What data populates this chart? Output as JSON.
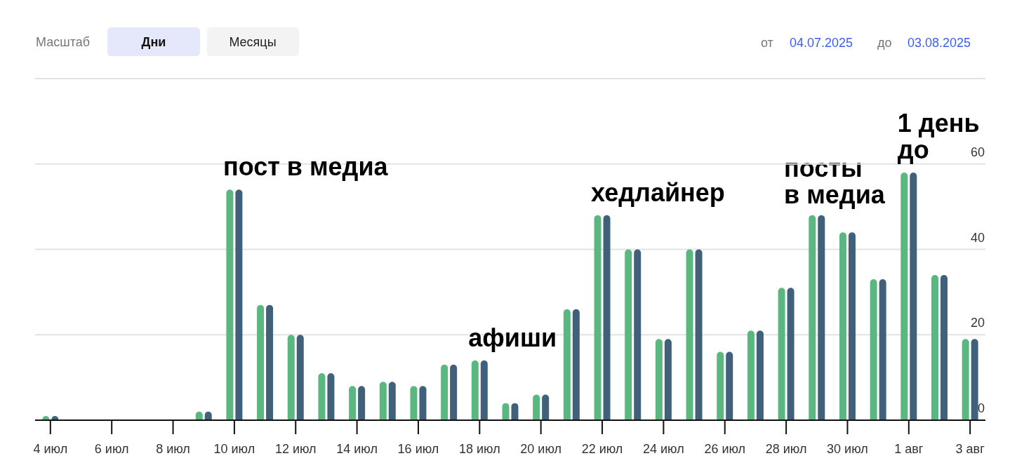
{
  "chart_data": {
    "type": "bar",
    "categories": [
      "4 июл",
      null,
      "6 июл",
      null,
      "8 июл",
      null,
      "10 июл",
      null,
      "12 июл",
      null,
      "14 июл",
      null,
      "16 июл",
      null,
      "18 июл",
      null,
      "20 июл",
      null,
      "22 июл",
      null,
      "24 июл",
      null,
      "26 июл",
      null,
      "28 июл",
      null,
      "30 июл",
      null,
      "1 авг",
      null,
      "3 авг"
    ],
    "series": [
      {
        "color": "#59b77f",
        "values": [
          1,
          0,
          0,
          0,
          0,
          2,
          54,
          27,
          20,
          11,
          8,
          9,
          8,
          13,
          14,
          4,
          6,
          26,
          48,
          40,
          19,
          40,
          16,
          21,
          31,
          48,
          44,
          33,
          58,
          34,
          19
        ]
      },
      {
        "color": "#41617a",
        "values": [
          1,
          0,
          0,
          0,
          0,
          2,
          54,
          27,
          20,
          11,
          8,
          9,
          8,
          13,
          14,
          4,
          6,
          26,
          48,
          40,
          19,
          40,
          16,
          21,
          31,
          48,
          44,
          33,
          58,
          34,
          19
        ]
      }
    ],
    "ylim": [
      0,
      80
    ],
    "yticks": [
      0,
      20,
      40,
      60,
      {
        "value": 80,
        "label": null
      }
    ],
    "grid": "y",
    "annotations": [
      "Масштаб",
      "Дни",
      "Месяцы",
      "от",
      "04.07.2025",
      "до",
      "03.08.2025",
      {
        "text": "пост в медиа",
        "x": "10 июл",
        "y": 54
      },
      {
        "text": "афиши",
        "x": "18 июл",
        "y": 14
      },
      {
        "text": "хедлайнер",
        "x": "22 июл",
        "y": 48
      },
      "посты\nв медиа",
      {
        "text": "1 день\nдо",
        "x": "1 авг",
        "y": 58
      }
    ]
  }
}
